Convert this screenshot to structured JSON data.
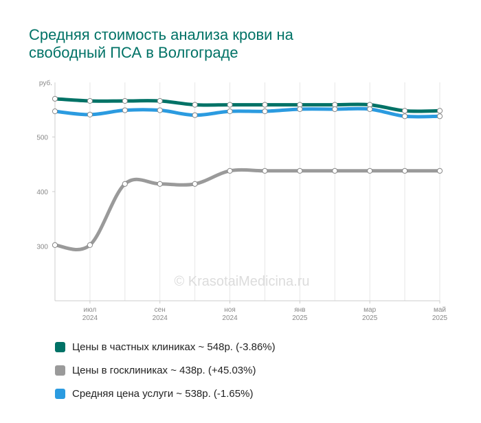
{
  "title_lines": [
    "Средняя стоимость анализа крови на",
    "свободный ПСА в Волгограде"
  ],
  "watermark": "© KrasotaiMedicina.ru",
  "chart_data": {
    "type": "line",
    "y_unit": "руб.",
    "ylim": [
      200,
      600
    ],
    "yticks": [
      300,
      400,
      500
    ],
    "x_count": 12,
    "xticks": [
      {
        "index": 1,
        "month": "июл",
        "year": "2024"
      },
      {
        "index": 3,
        "month": "сен",
        "year": "2024"
      },
      {
        "index": 5,
        "month": "ноя",
        "year": "2024"
      },
      {
        "index": 7,
        "month": "янв",
        "year": "2025"
      },
      {
        "index": 9,
        "month": "мар",
        "year": "2025"
      },
      {
        "index": 11,
        "month": "май",
        "year": "2025"
      }
    ],
    "grid": "vertical",
    "legend_position": "bottom",
    "series": [
      {
        "name": "Цены в частных клиниках",
        "color": "#007266",
        "values": [
          570,
          566,
          566,
          566,
          559,
          559,
          559,
          559,
          559,
          559,
          548,
          548
        ]
      },
      {
        "name": "Средняя цена услуги",
        "color": "#2b9be0",
        "values": [
          547,
          541,
          549,
          549,
          540,
          547,
          547,
          551,
          551,
          551,
          538,
          538
        ]
      },
      {
        "name": "Цены в госклиниках",
        "color": "#9a9a9a",
        "values": [
          302,
          302,
          414,
          414,
          414,
          438,
          438,
          438,
          438,
          438,
          438,
          438
        ]
      }
    ]
  },
  "legend": [
    {
      "label": "Цены в частных клиниках ~ 548р. (-3.86%)",
      "color": "#007266"
    },
    {
      "label": "Цены в госклиниках ~ 438р. (+45.03%)",
      "color": "#9a9a9a"
    },
    {
      "label": "Средняя цена услуги ~ 538р. (-1.65%)",
      "color": "#2b9be0"
    }
  ]
}
